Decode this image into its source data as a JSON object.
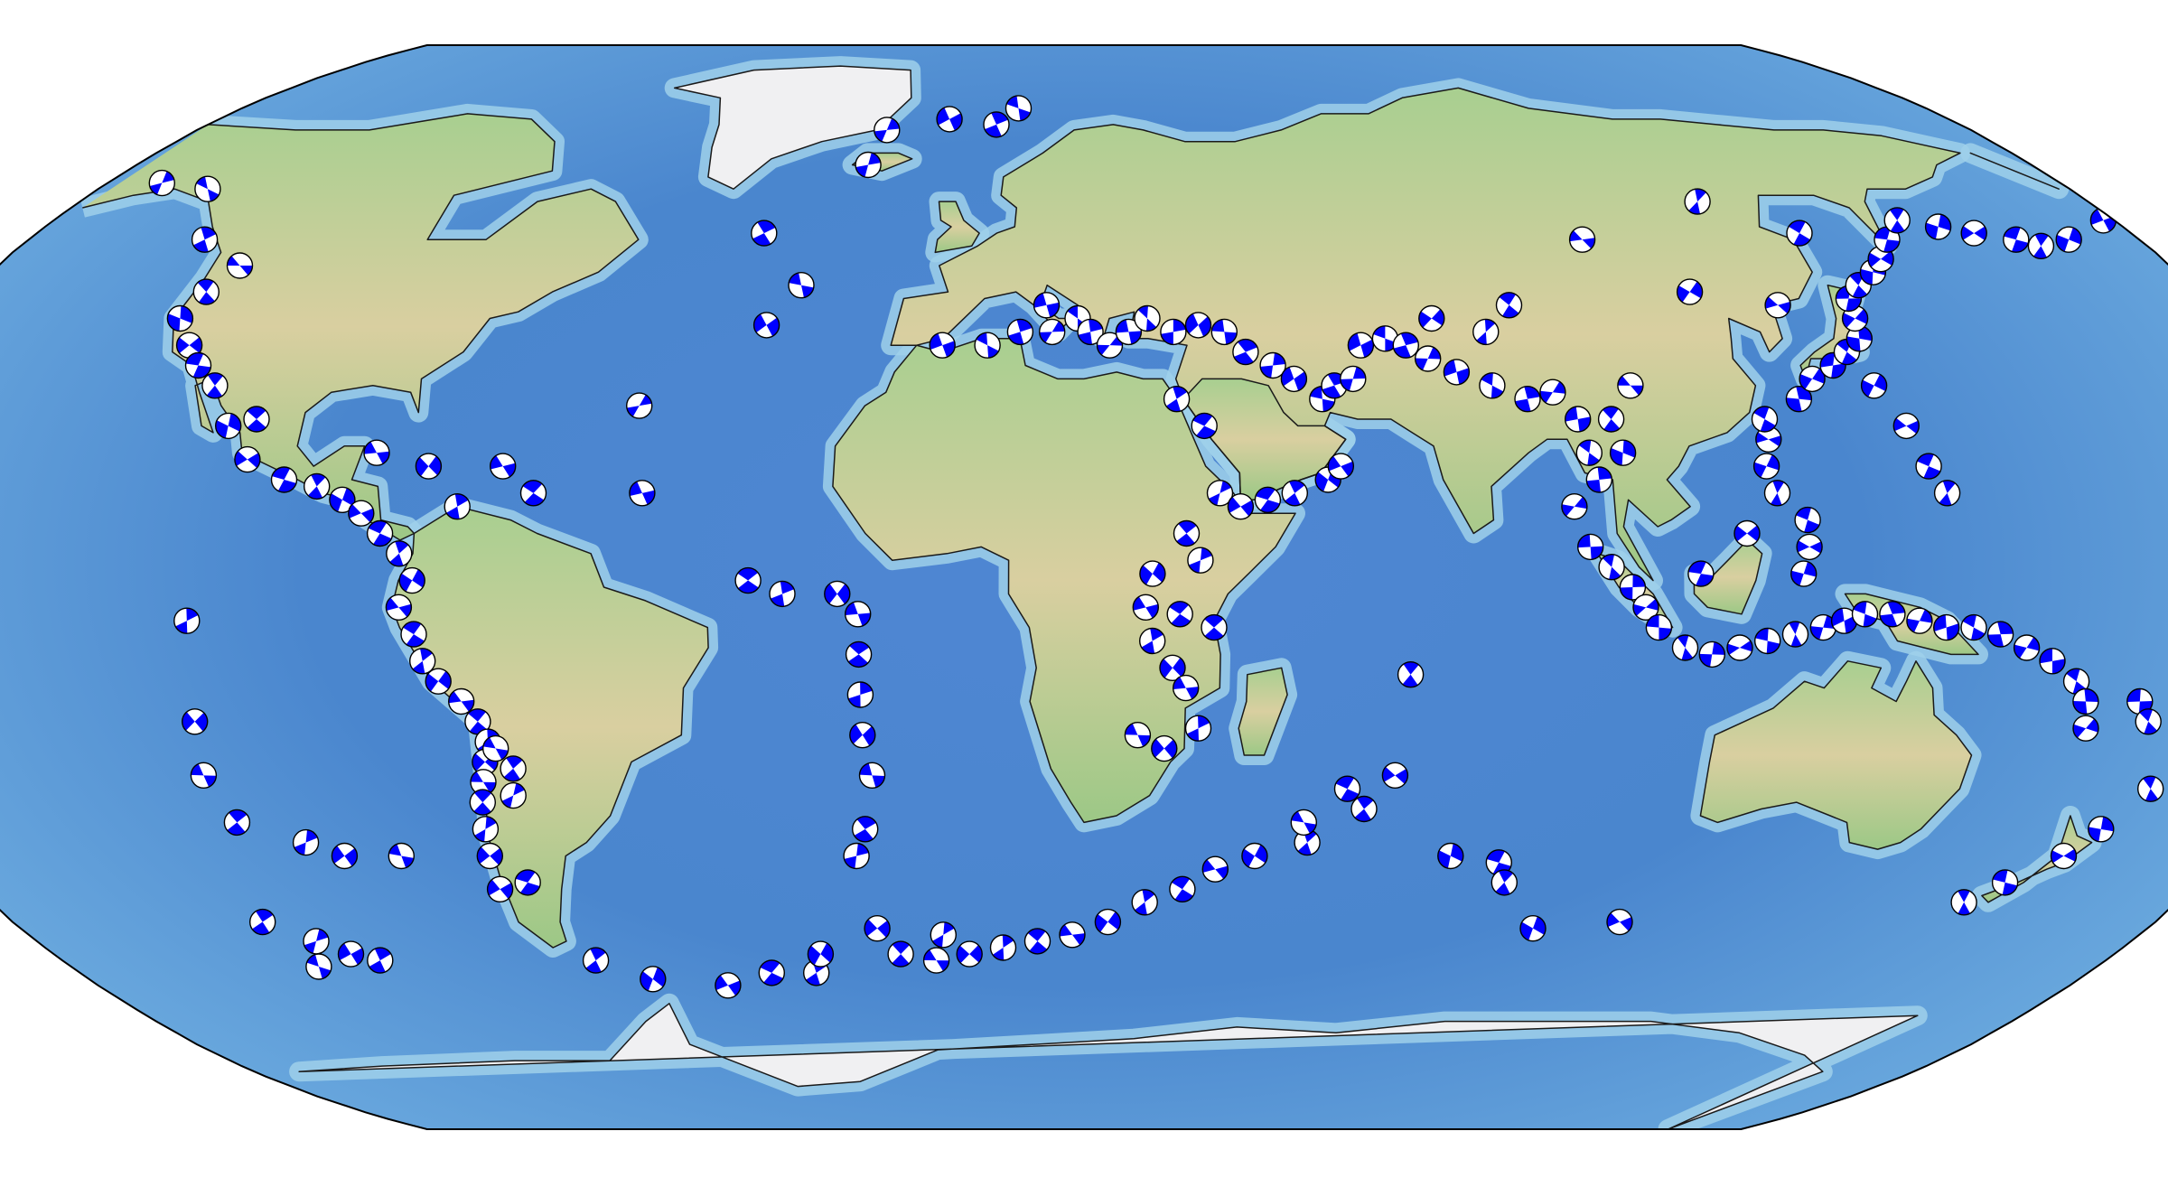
{
  "map": {
    "projection": "robinson",
    "center_longitude": 20,
    "basemap": "shaded-relief-bathymetry",
    "colors": {
      "ocean_deep": "#3f73c6",
      "ocean_mid": "#5e9bd6",
      "ocean_shelf": "#9fd0ea",
      "land_low": "#8cbf7c",
      "land_high": "#e7d3a6",
      "ice": "#f0f0f2",
      "coastline": "#1a1a1a",
      "beachball_fill": "#0000ff",
      "beachball_blank": "#ffffff",
      "beachball_outline": "#000000"
    }
  },
  "beachballs": [
    {
      "lon": -120,
      "lat": 48
    },
    {
      "lon": -122,
      "lat": 44
    },
    {
      "lon": -123,
      "lat": 40
    },
    {
      "lon": -119,
      "lat": 36
    },
    {
      "lon": -116,
      "lat": 33
    },
    {
      "lon": -112,
      "lat": 30
    },
    {
      "lon": -108,
      "lat": 24
    },
    {
      "lon": -104,
      "lat": 19
    },
    {
      "lon": -98,
      "lat": 16
    },
    {
      "lon": -93,
      "lat": 15
    },
    {
      "lon": -89,
      "lat": 13
    },
    {
      "lon": -86,
      "lat": 11
    },
    {
      "lon": -83,
      "lat": 8
    },
    {
      "lon": -80,
      "lat": 5
    },
    {
      "lon": -78,
      "lat": 1
    },
    {
      "lon": -80,
      "lat": -3
    },
    {
      "lon": -78,
      "lat": -7
    },
    {
      "lon": -77,
      "lat": -11
    },
    {
      "lon": -75,
      "lat": -14
    },
    {
      "lon": -72,
      "lat": -17
    },
    {
      "lon": -70,
      "lat": -20
    },
    {
      "lon": -69,
      "lat": -23
    },
    {
      "lon": -70,
      "lat": -26
    },
    {
      "lon": -71,
      "lat": -29
    },
    {
      "lon": -72,
      "lat": -32
    },
    {
      "lon": -73,
      "lat": -36
    },
    {
      "lon": -74,
      "lat": -40
    },
    {
      "lon": -68,
      "lat": -24
    },
    {
      "lon": -66,
      "lat": -27
    },
    {
      "lon": -67,
      "lat": -31
    },
    {
      "lon": -75,
      "lat": -45
    },
    {
      "lon": -70,
      "lat": -44
    },
    {
      "lon": -66,
      "lat": -56
    },
    {
      "lon": -58,
      "lat": -59
    },
    {
      "lon": -45,
      "lat": -60
    },
    {
      "lon": -36,
      "lat": -58
    },
    {
      "lon": -28,
      "lat": -58
    },
    {
      "lon": -26,
      "lat": -55
    },
    {
      "lon": -66,
      "lat": 18
    },
    {
      "lon": -61,
      "lat": 14
    },
    {
      "lon": -72,
      "lat": 12
    },
    {
      "lon": -77,
      "lat": 18
    },
    {
      "lon": -85,
      "lat": 20
    },
    {
      "lon": -104,
      "lat": 25
    },
    {
      "lon": -111,
      "lat": -5
    },
    {
      "lon": -112,
      "lat": -20
    },
    {
      "lon": -113,
      "lat": -28
    },
    {
      "lon": -111,
      "lat": -35
    },
    {
      "lon": -102,
      "lat": -38
    },
    {
      "lon": -97,
      "lat": -40
    },
    {
      "lon": -88,
      "lat": -40
    },
    {
      "lon": -118,
      "lat": -50
    },
    {
      "lon": -112,
      "lat": -53
    },
    {
      "lon": -108,
      "lat": -55
    },
    {
      "lon": -116,
      "lat": -57
    },
    {
      "lon": -104,
      "lat": -56
    },
    {
      "lon": -150,
      "lat": 61
    },
    {
      "lon": -162,
      "lat": 55
    },
    {
      "lon": -140,
      "lat": 60
    },
    {
      "lon": -130,
      "lat": 52
    },
    {
      "lon": -47,
      "lat": 27
    },
    {
      "lon": -45,
      "lat": 14
    },
    {
      "lon": -29,
      "lat": 1
    },
    {
      "lon": -24,
      "lat": -1
    },
    {
      "lon": -16,
      "lat": -1
    },
    {
      "lon": -13,
      "lat": -4
    },
    {
      "lon": -13,
      "lat": -10
    },
    {
      "lon": -13,
      "lat": -16
    },
    {
      "lon": -13,
      "lat": -22
    },
    {
      "lon": -12,
      "lat": -28
    },
    {
      "lon": -14,
      "lat": -36
    },
    {
      "lon": -16,
      "lat": -40
    },
    {
      "lon": -30,
      "lat": 39
    },
    {
      "lon": -26,
      "lat": 45
    },
    {
      "lon": -35,
      "lat": 53
    },
    {
      "lon": -21,
      "lat": 64
    },
    {
      "lon": -8,
      "lat": 72
    },
    {
      "lon": 6,
      "lat": 74
    },
    {
      "lon": 2,
      "lat": 71
    },
    {
      "lon": -20,
      "lat": 70
    },
    {
      "lon": -2,
      "lat": 36
    },
    {
      "lon": 5,
      "lat": 36
    },
    {
      "lon": 10,
      "lat": 38
    },
    {
      "lon": 15,
      "lat": 38
    },
    {
      "lon": 14,
      "lat": 42
    },
    {
      "lon": 19,
      "lat": 40
    },
    {
      "lon": 21,
      "lat": 38
    },
    {
      "lon": 24,
      "lat": 36
    },
    {
      "lon": 27,
      "lat": 38
    },
    {
      "lon": 30,
      "lat": 40
    },
    {
      "lon": 34,
      "lat": 38
    },
    {
      "lon": 38,
      "lat": 39
    },
    {
      "lon": 42,
      "lat": 38
    },
    {
      "lon": 45,
      "lat": 35
    },
    {
      "lon": 49,
      "lat": 33
    },
    {
      "lon": 52,
      "lat": 31
    },
    {
      "lon": 56,
      "lat": 28
    },
    {
      "lon": 58,
      "lat": 30
    },
    {
      "lon": 61,
      "lat": 31
    },
    {
      "lon": 63,
      "lat": 36
    },
    {
      "lon": 67,
      "lat": 37
    },
    {
      "lon": 70,
      "lat": 36
    },
    {
      "lon": 73,
      "lat": 34
    },
    {
      "lon": 77,
      "lat": 32
    },
    {
      "lon": 82,
      "lat": 30
    },
    {
      "lon": 87,
      "lat": 28
    },
    {
      "lon": 91,
      "lat": 29
    },
    {
      "lon": 94,
      "lat": 25
    },
    {
      "lon": 95,
      "lat": 20
    },
    {
      "lon": 96,
      "lat": 16
    },
    {
      "lon": 92,
      "lat": 12
    },
    {
      "lon": 94,
      "lat": 6
    },
    {
      "lon": 97,
      "lat": 3
    },
    {
      "lon": 100,
      "lat": 0
    },
    {
      "lon": 102,
      "lat": -3
    },
    {
      "lon": 104,
      "lat": -6
    },
    {
      "lon": 108,
      "lat": -9
    },
    {
      "lon": 112,
      "lat": -10
    },
    {
      "lon": 116,
      "lat": -9
    },
    {
      "lon": 120,
      "lat": -8
    },
    {
      "lon": 124,
      "lat": -7
    },
    {
      "lon": 128,
      "lat": -6
    },
    {
      "lon": 131,
      "lat": -5
    },
    {
      "lon": 134,
      "lat": -4
    },
    {
      "lon": 138,
      "lat": -4
    },
    {
      "lon": 142,
      "lat": -5
    },
    {
      "lon": 146,
      "lat": -6
    },
    {
      "lon": 150,
      "lat": -6
    },
    {
      "lon": 154,
      "lat": -7
    },
    {
      "lon": 158,
      "lat": -9
    },
    {
      "lon": 162,
      "lat": -11
    },
    {
      "lon": 166,
      "lat": -14
    },
    {
      "lon": 168,
      "lat": -17
    },
    {
      "lon": 169,
      "lat": -21
    },
    {
      "lon": 176,
      "lat": -17
    },
    {
      "lon": 178,
      "lat": -20
    },
    {
      "lon": -177,
      "lat": -16
    },
    {
      "lon": -176,
      "lat": -20
    },
    {
      "lon": -175,
      "lat": -24
    },
    {
      "lon": -178,
      "lat": -30
    },
    {
      "lon": 178,
      "lat": -36
    },
    {
      "lon": 175,
      "lat": -40
    },
    {
      "lon": 169,
      "lat": -44
    },
    {
      "lon": 165,
      "lat": -47
    },
    {
      "lon": 125,
      "lat": 2
    },
    {
      "lon": 126,
      "lat": 6
    },
    {
      "lon": 126,
      "lat": 10
    },
    {
      "lon": 122,
      "lat": 14
    },
    {
      "lon": 121,
      "lat": 18
    },
    {
      "lon": 122,
      "lat": 22
    },
    {
      "lon": 122,
      "lat": 25
    },
    {
      "lon": 128,
      "lat": 28
    },
    {
      "lon": 131,
      "lat": 31
    },
    {
      "lon": 135,
      "lat": 33
    },
    {
      "lon": 138,
      "lat": 35
    },
    {
      "lon": 141,
      "lat": 37
    },
    {
      "lon": 142,
      "lat": 40
    },
    {
      "lon": 143,
      "lat": 43
    },
    {
      "lon": 146,
      "lat": 45
    },
    {
      "lon": 150,
      "lat": 47
    },
    {
      "lon": 153,
      "lat": 49
    },
    {
      "lon": 157,
      "lat": 52
    },
    {
      "lon": 162,
      "lat": 55
    },
    {
      "lon": 168,
      "lat": 54
    },
    {
      "lon": 173,
      "lat": 53
    },
    {
      "lon": 179,
      "lat": 52
    },
    {
      "lon": -178,
      "lat": 51
    },
    {
      "lon": -172,
      "lat": 52
    },
    {
      "lon": 143,
      "lat": 24
    },
    {
      "lon": 145,
      "lat": 18
    },
    {
      "lon": 147,
      "lat": 14
    },
    {
      "lon": 140,
      "lat": 30
    },
    {
      "lon": 131,
      "lat": 42
    },
    {
      "lon": 143,
      "lat": 53
    },
    {
      "lon": 130,
      "lat": 58
    },
    {
      "lon": 118,
      "lat": 44
    },
    {
      "lon": 105,
      "lat": 52
    },
    {
      "lon": 88,
      "lat": 42
    },
    {
      "lon": 83,
      "lat": 38
    },
    {
      "lon": 75,
      "lat": 40
    },
    {
      "lon": 103,
      "lat": 30
    },
    {
      "lon": 99,
      "lat": 25
    },
    {
      "lon": 100,
      "lat": 20
    },
    {
      "lon": 117,
      "lat": 8
    },
    {
      "lon": 110,
      "lat": 2
    },
    {
      "lon": 68,
      "lat": -13
    },
    {
      "lon": 78,
      "lat": -40
    },
    {
      "lon": 67,
      "lat": -28
    },
    {
      "lon": 86,
      "lat": -41
    },
    {
      "lon": 88,
      "lat": -44
    },
    {
      "lon": 96,
      "lat": -51
    },
    {
      "lon": 110,
      "lat": -50
    },
    {
      "lon": 60,
      "lat": -30
    },
    {
      "lon": 55,
      "lat": -38
    },
    {
      "lon": 47,
      "lat": -40
    },
    {
      "lon": 41,
      "lat": -42
    },
    {
      "lon": 36,
      "lat": -45
    },
    {
      "lon": 30,
      "lat": -47
    },
    {
      "lon": 24,
      "lat": -50
    },
    {
      "lon": 18,
      "lat": -52
    },
    {
      "lon": 12,
      "lat": -53
    },
    {
      "lon": 6,
      "lat": -54
    },
    {
      "lon": 0,
      "lat": -55
    },
    {
      "lon": -6,
      "lat": -56
    },
    {
      "lon": -12,
      "lat": -55
    },
    {
      "lon": -4,
      "lat": -52
    },
    {
      "lon": -15,
      "lat": -51
    },
    {
      "lon": 54,
      "lat": -35
    },
    {
      "lon": 63,
      "lat": -33
    },
    {
      "lon": 40,
      "lat": 14
    },
    {
      "lon": 43,
      "lat": 12
    },
    {
      "lon": 47,
      "lat": 13
    },
    {
      "lon": 51,
      "lat": 14
    },
    {
      "lon": 56,
      "lat": 16
    },
    {
      "lon": 58,
      "lat": 18
    },
    {
      "lon": 38,
      "lat": 24
    },
    {
      "lon": 34,
      "lat": 28
    },
    {
      "lon": 30,
      "lat": 2
    },
    {
      "lon": 29,
      "lat": -3
    },
    {
      "lon": 34,
      "lat": -4
    },
    {
      "lon": 30,
      "lat": -8
    },
    {
      "lon": 33,
      "lat": -12
    },
    {
      "lon": 35,
      "lat": -15
    },
    {
      "lon": 39,
      "lat": -6
    },
    {
      "lon": 37,
      "lat": -21
    },
    {
      "lon": 32,
      "lat": -24
    },
    {
      "lon": 28,
      "lat": -22
    },
    {
      "lon": 35,
      "lat": 8
    },
    {
      "lon": 37,
      "lat": 4
    }
  ]
}
